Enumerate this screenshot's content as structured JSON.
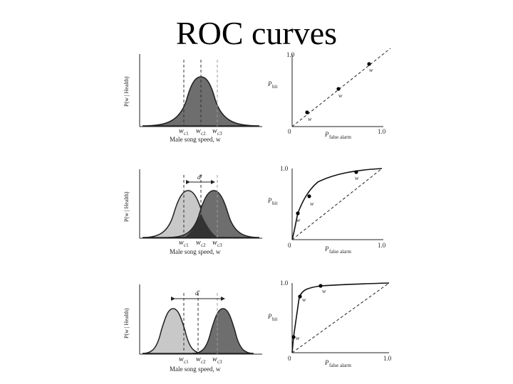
{
  "slide": {
    "title": "ROC curves"
  },
  "axis": {
    "x_label": "Male song speed, w",
    "y_label": "P(w | Health)",
    "thresholds": [
      "w",
      "w",
      "w"
    ],
    "threshold_subs": [
      "c1",
      "c2",
      "c3"
    ],
    "d_prime": "d'",
    "roc_x_label": "P",
    "roc_x_sub": "false alarm",
    "roc_y_label": "P",
    "roc_y_sub": "hit",
    "tick_zero": "0",
    "tick_one": "1.0"
  },
  "panels": [
    {
      "name": "overlapping",
      "separation": "none"
    },
    {
      "name": "moderate",
      "separation": "moderate"
    },
    {
      "name": "separated",
      "separation": "large"
    }
  ],
  "colors": {
    "dark_fill": "#6e6e6e",
    "light_fill": "#c8c8c8",
    "overlap_fill": "#333333",
    "ink": "#222222"
  }
}
